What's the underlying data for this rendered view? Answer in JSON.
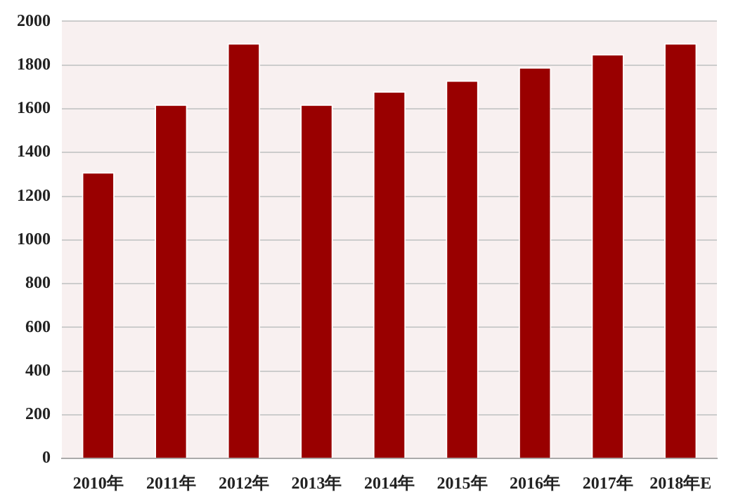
{
  "chart_data": {
    "type": "bar",
    "categories": [
      "2010年",
      "2011年",
      "2012年",
      "2013年",
      "2014年",
      "2015年",
      "2016年",
      "2017年",
      "2018年E"
    ],
    "values": [
      1310,
      1620,
      1900,
      1620,
      1680,
      1730,
      1790,
      1850,
      1900
    ],
    "color": "#990000",
    "ylim": [
      0,
      2000
    ],
    "yticks": [
      0,
      200,
      400,
      600,
      800,
      1000,
      1200,
      1400,
      1600,
      1800,
      2000
    ],
    "grid": "y",
    "legend": false
  }
}
